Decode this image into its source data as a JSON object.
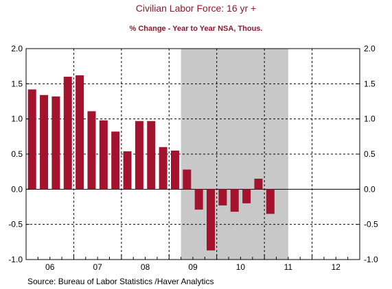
{
  "chart_data": {
    "type": "bar",
    "title": "Civilian Labor Force: 16 yr +",
    "subtitle": "% Change -  Year to Year    NSA, Thous.",
    "source": "Source:  Bureau of Labor Statistics /Haver Analytics",
    "x_tick_labels": [
      "06",
      "07",
      "08",
      "09",
      "10",
      "11",
      "12"
    ],
    "y_ticks": [
      "2.0",
      "1.5",
      "1.0",
      "0.5",
      "0.0",
      "-0.5",
      "-1.0"
    ],
    "ylim": [
      -1.0,
      2.0
    ],
    "grid": true,
    "recession_shading": {
      "start_period": 13,
      "end_period": 22
    },
    "series": [
      {
        "values": [
          1.42,
          1.34,
          1.32,
          1.6,
          1.62,
          1.11,
          0.98,
          0.82,
          0.54,
          0.97,
          0.97,
          0.6,
          0.55,
          0.28,
          -0.29,
          -0.87,
          -0.23,
          -0.32,
          -0.2,
          0.15,
          -0.35
        ]
      }
    ],
    "colors": {
      "bar": "#a3132e",
      "shading": "#c8c8c8",
      "title": "#8b1a2b"
    }
  }
}
